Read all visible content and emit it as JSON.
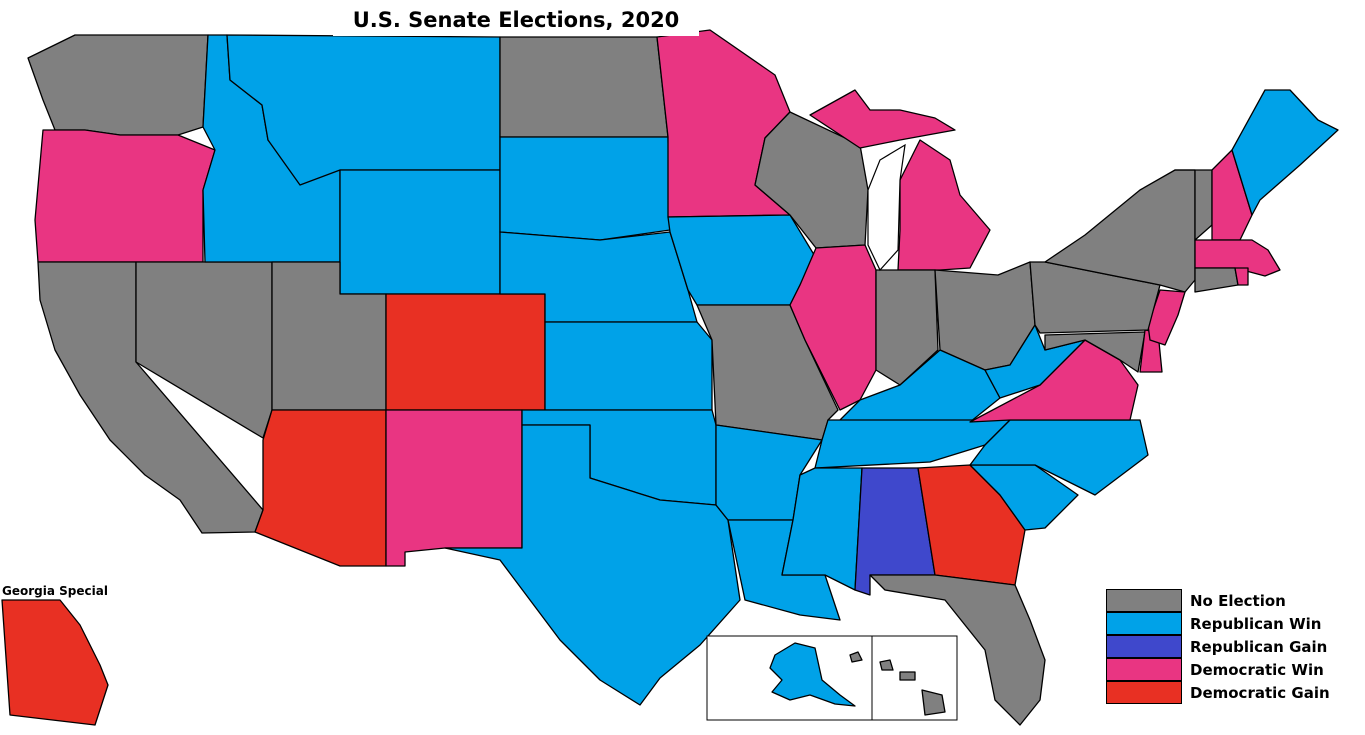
{
  "title": "U.S. Senate Elections, 2020",
  "special_label": "Georgia Special",
  "colors": {
    "no_election": "#808080",
    "republican_win": "#00a2e8",
    "republican_gain": "#3f48cc",
    "democratic_win": "#e93582",
    "democratic_gain": "#e83023"
  },
  "legend": [
    {
      "key": "no_election",
      "label": "No Election"
    },
    {
      "key": "republican_win",
      "label": "Republican Win"
    },
    {
      "key": "republican_gain",
      "label": "Republican Gain"
    },
    {
      "key": "democratic_win",
      "label": "Democratic Win"
    },
    {
      "key": "democratic_gain",
      "label": "Democratic Gain"
    }
  ],
  "states": {
    "WA": "no_election",
    "OR": "democratic_win",
    "CA": "no_election",
    "NV": "no_election",
    "ID": "republican_win",
    "MT": "republican_win",
    "WY": "republican_win",
    "UT": "no_election",
    "AZ": "democratic_gain",
    "CO": "democratic_gain",
    "NM": "democratic_win",
    "ND": "no_election",
    "SD": "republican_win",
    "NE": "republican_win",
    "KS": "republican_win",
    "OK": "republican_win",
    "TX": "republican_win",
    "MN": "democratic_win",
    "IA": "republican_win",
    "MO": "no_election",
    "AR": "republican_win",
    "LA": "republican_win",
    "WI": "no_election",
    "IL": "democratic_win",
    "MI": "democratic_win",
    "IN": "no_election",
    "OH": "no_election",
    "KY": "republican_win",
    "TN": "republican_win",
    "MS": "republican_win",
    "AL": "republican_gain",
    "GA": "democratic_gain",
    "FL": "no_election",
    "SC": "republican_win",
    "NC": "republican_win",
    "VA": "democratic_win",
    "WV": "republican_win",
    "MD": "no_election",
    "DE": "democratic_win",
    "NJ": "democratic_win",
    "PA": "no_election",
    "NY": "no_election",
    "CT": "no_election",
    "RI": "democratic_win",
    "MA": "democratic_win",
    "VT": "no_election",
    "NH": "democratic_win",
    "ME": "republican_win",
    "AK": "republican_win",
    "HI": "no_election",
    "GA_SPECIAL": "democratic_gain"
  }
}
